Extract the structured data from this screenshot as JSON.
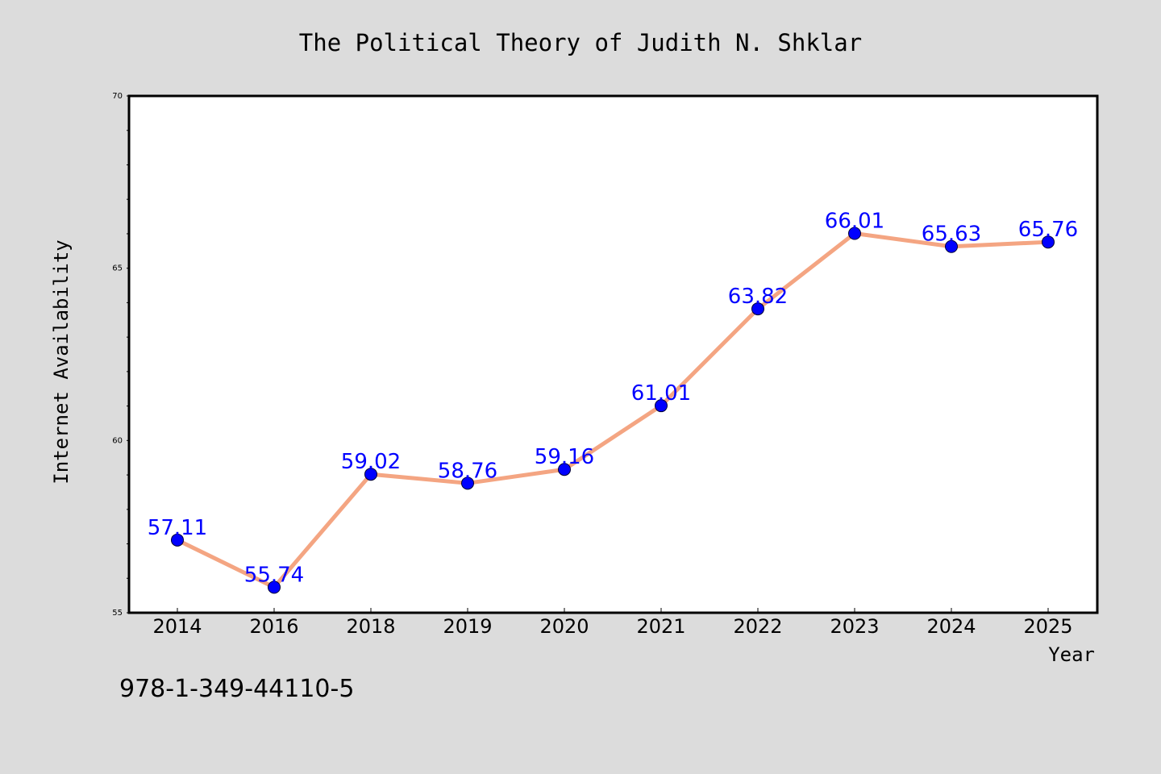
{
  "chart_data": {
    "type": "line",
    "title": "The Political Theory of Judith N. Shklar",
    "xlabel": "Year",
    "ylabel": "Internet Availability",
    "categories": [
      "2014",
      "2016",
      "2018",
      "2019",
      "2020",
      "2021",
      "2022",
      "2023",
      "2024",
      "2025"
    ],
    "series": [
      {
        "values": [
          57.11,
          55.74,
          59.02,
          58.76,
          59.16,
          61.01,
          63.82,
          66.01,
          65.63,
          65.76
        ],
        "labels": [
          "57.11",
          "55.74",
          "59.02",
          "58.76",
          "59.16",
          "61.01",
          "63.82",
          "66.01",
          "65.63",
          "65.76"
        ]
      }
    ],
    "ylim": [
      55,
      70
    ],
    "yticks": [
      55,
      60,
      65,
      70
    ],
    "grid": false,
    "line_color": "#f4a582",
    "marker_color": "#0000ff",
    "label_color": "#0000ff"
  },
  "footer": {
    "isbn": "978-1-349-44110-5"
  },
  "colors": {
    "background": "#dcdcdc",
    "plot_background": "#ffffff"
  }
}
